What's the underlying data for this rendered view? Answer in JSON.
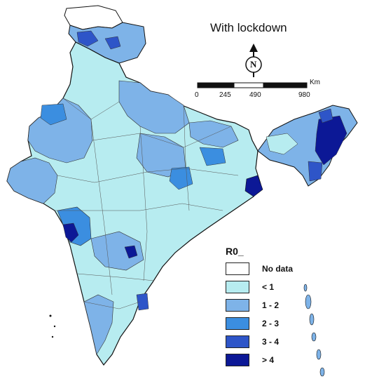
{
  "map": {
    "title": "With lockdown",
    "north_letter": "N",
    "scale": {
      "unit": "Km",
      "ticks": [
        "0",
        "245",
        "490",
        "980"
      ]
    },
    "legend": {
      "title": "R0_",
      "items": [
        {
          "label": "No data",
          "color": "#ffffff"
        },
        {
          "label": "< 1",
          "color": "#b7ecf0"
        },
        {
          "label": "1 - 2",
          "color": "#7eb3e8"
        },
        {
          "label": "2 - 3",
          "color": "#3b8ee0"
        },
        {
          "label": "3 - 4",
          "color": "#2e55c8"
        },
        {
          "label": "> 4",
          "color": "#0c1896"
        }
      ]
    }
  }
}
